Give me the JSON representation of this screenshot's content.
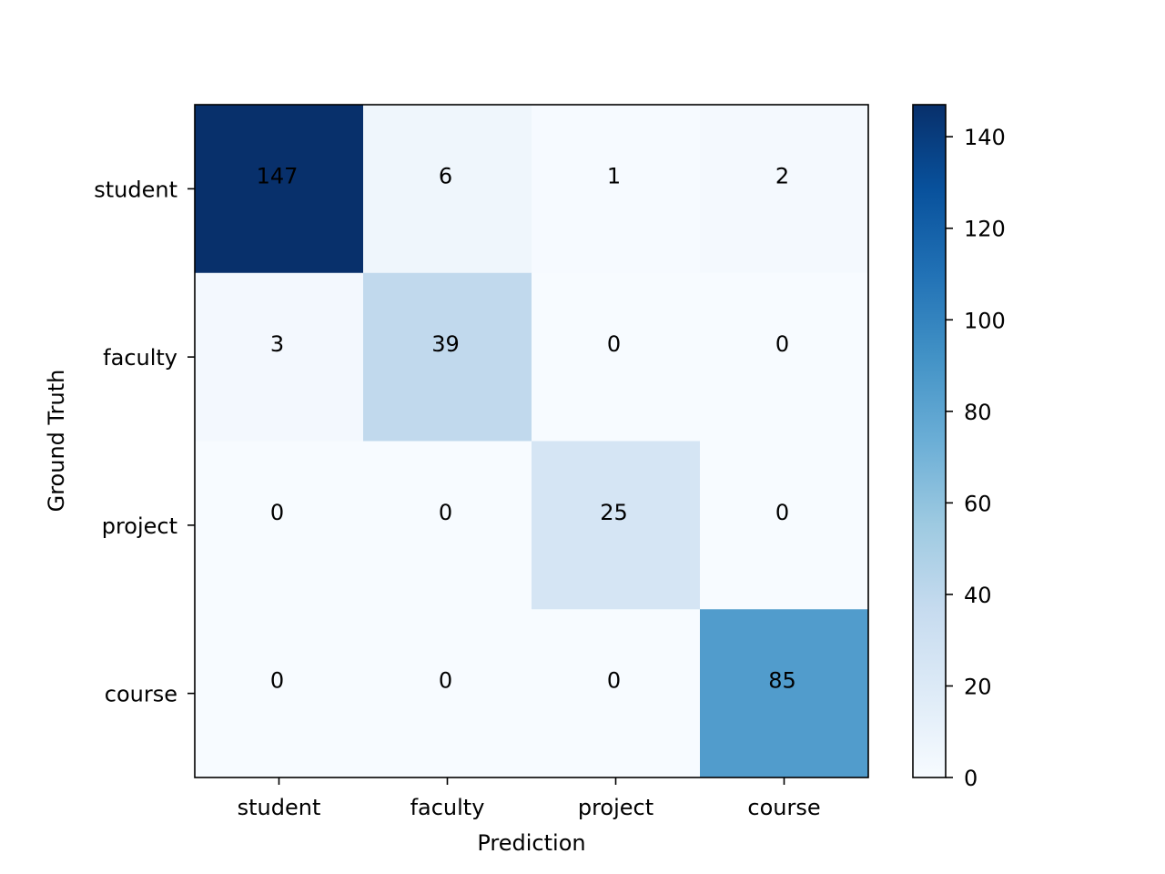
{
  "chart_data": {
    "type": "heatmap",
    "title": "",
    "xlabel": "Prediction",
    "ylabel": "Ground Truth",
    "x_categories": [
      "student",
      "faculty",
      "project",
      "course"
    ],
    "y_categories": [
      "student",
      "faculty",
      "project",
      "course"
    ],
    "values": [
      [
        147,
        6,
        1,
        2
      ],
      [
        3,
        39,
        0,
        0
      ],
      [
        0,
        0,
        25,
        0
      ],
      [
        0,
        0,
        0,
        85
      ]
    ],
    "colormap": "Blues",
    "vmin": 0,
    "vmax": 147,
    "colorbar": {
      "ticks": [
        0,
        20,
        40,
        60,
        80,
        100,
        120,
        140
      ],
      "tick_labels": [
        "0",
        "20",
        "40",
        "60",
        "80",
        "100",
        "120",
        "140"
      ]
    },
    "grid": false
  }
}
